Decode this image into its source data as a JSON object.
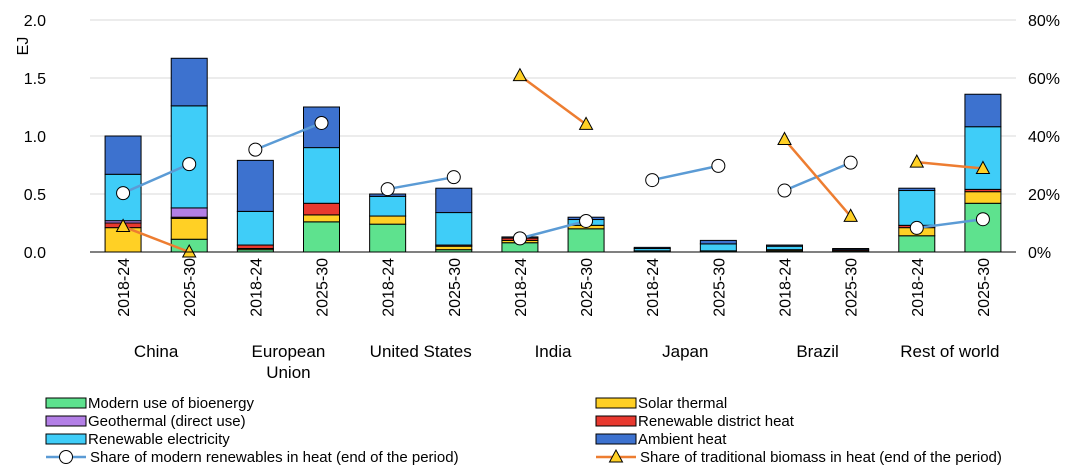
{
  "chart_data": {
    "type": "bar",
    "stacked": true,
    "ylabel": "EJ",
    "ylim": [
      0,
      2.0
    ],
    "yticks": [
      "0.0",
      "0.5",
      "1.0",
      "1.5",
      "2.0"
    ],
    "y2lim": [
      0,
      80
    ],
    "y2ticks": [
      "0%",
      "20%",
      "40%",
      "60%",
      "80%"
    ],
    "grid": true,
    "legend_position": "bottom",
    "period_labels": [
      "2018-24",
      "2025-30"
    ],
    "groups": [
      {
        "label": "China"
      },
      {
        "label": "European Union"
      },
      {
        "label": "United States"
      },
      {
        "label": "India"
      },
      {
        "label": "Japan"
      },
      {
        "label": "Brazil"
      },
      {
        "label": "Rest of world"
      }
    ],
    "categories": [
      "China 2018-24",
      "China 2025-30",
      "European Union 2018-24",
      "European Union 2025-30",
      "United States 2018-24",
      "United States 2025-30",
      "India 2018-24",
      "India 2025-30",
      "Japan 2018-24",
      "Japan 2025-30",
      "Brazil 2018-24",
      "Brazil 2025-30",
      "Rest of world 2018-24",
      "Rest of world 2025-30"
    ],
    "series": [
      {
        "name": "Modern use of bioenergy",
        "color": "#5ee28e",
        "values": [
          0.0,
          0.11,
          0.02,
          0.26,
          0.24,
          0.02,
          0.08,
          0.2,
          0.01,
          0.01,
          0.01,
          0.01,
          0.14,
          0.42
        ]
      },
      {
        "name": "Solar thermal",
        "color": "#ffd025",
        "values": [
          0.21,
          0.18,
          0.01,
          0.06,
          0.07,
          0.03,
          0.02,
          0.03,
          0.0,
          0.0,
          0.01,
          0.0,
          0.07,
          0.1
        ]
      },
      {
        "name": "Renewable district heat",
        "color": "#e8392f",
        "values": [
          0.04,
          0.01,
          0.03,
          0.1,
          0.0,
          0.01,
          0.02,
          0.0,
          0.0,
          0.0,
          0.0,
          0.01,
          0.02,
          0.02
        ]
      },
      {
        "name": "Geothermal (direct use)",
        "color": "#b37fe6",
        "values": [
          0.02,
          0.08,
          0.0,
          0.0,
          0.0,
          0.0,
          0.0,
          0.0,
          0.0,
          0.0,
          0.0,
          0.0,
          0.0,
          0.0
        ]
      },
      {
        "name": "Renewable electricity",
        "color": "#3fcdf8",
        "values": [
          0.4,
          0.88,
          0.29,
          0.48,
          0.17,
          0.28,
          0.0,
          0.05,
          0.02,
          0.06,
          0.03,
          0.0,
          0.3,
          0.54
        ]
      },
      {
        "name": "Ambient heat",
        "color": "#3d72cf",
        "values": [
          0.33,
          0.41,
          0.44,
          0.35,
          0.02,
          0.21,
          0.01,
          0.02,
          0.01,
          0.03,
          0.01,
          0.01,
          0.02,
          0.28
        ]
      }
    ],
    "line_series": [
      {
        "name": "Share of modern renewables in heat (end of the period)",
        "marker": "circle",
        "color": "#5b9bd5",
        "values": [
          20.3,
          30.3,
          35.3,
          44.5,
          21.7,
          25.8,
          4.7,
          10.7,
          24.8,
          29.7,
          21.2,
          30.8,
          8.3,
          11.3
        ]
      },
      {
        "name": "Share of traditional biomass in heat (end of the period)",
        "marker": "triangle",
        "color": "#ed7d31",
        "values": [
          8.8,
          0.0,
          null,
          null,
          null,
          null,
          60.8,
          44.0,
          null,
          null,
          38.8,
          12.3,
          31.0,
          28.8
        ]
      }
    ],
    "legend_order": [
      "Modern use of bioenergy",
      "Solar thermal",
      "Geothermal (direct use)",
      "Renewable district heat",
      "Renewable electricity",
      "Ambient heat",
      "Share of modern renewables in heat (end of the period)",
      "Share of traditional biomass in heat (end of the period)"
    ]
  }
}
